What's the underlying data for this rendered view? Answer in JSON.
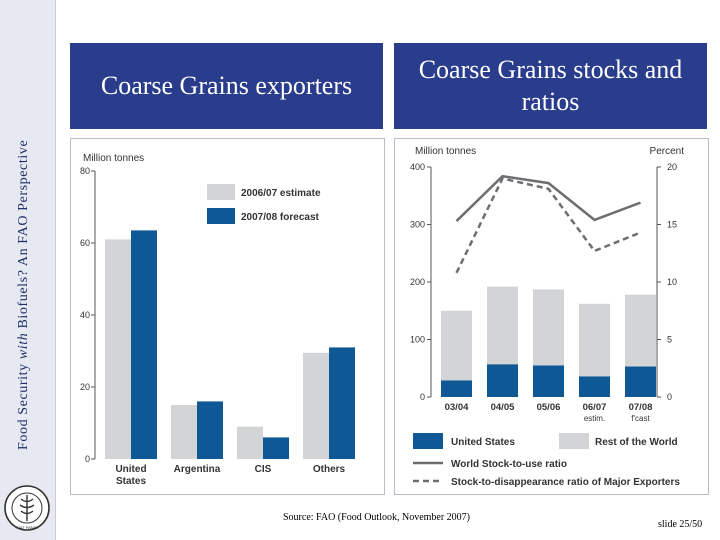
{
  "sidebar": {
    "text_prefix": "Food Security ",
    "text_italic": "with",
    "text_suffix": " Biofuels? An FAO Perspective"
  },
  "logo": {
    "letters": "FIAT PANIS"
  },
  "left_title": "Coarse Grains exporters",
  "right_title": "Coarse Grains stocks and ratios",
  "footer": {
    "source": "Source: FAO (Food Outlook, November 2007)",
    "slide_number": "slide 25/50"
  },
  "colors": {
    "blue": "#0e5896",
    "grey": "#d3d4d6",
    "title_bg": "#2a3c8c",
    "line": "#6d6e71"
  },
  "chart_data": [
    {
      "type": "bar",
      "ylabel": "Million tonnes",
      "ylim": [
        0,
        80
      ],
      "yticks": [
        "0",
        "20",
        "40",
        "60",
        "80"
      ],
      "categories": [
        "United States",
        "Argentina",
        "CIS",
        "Others"
      ],
      "category_lines": [
        [
          "United",
          "States"
        ],
        [
          "Argentina"
        ],
        [
          "CIS"
        ],
        [
          "Others"
        ]
      ],
      "series": [
        {
          "name": "2006/07 estimate",
          "color": "#d3d4d6",
          "values": [
            61,
            15,
            9,
            29.5
          ]
        },
        {
          "name": "2007/08 forecast",
          "color": "#0e5896",
          "values": [
            63.5,
            16,
            6,
            31
          ]
        }
      ],
      "legend_placement": "top-right",
      "grid": false
    },
    {
      "type": "bar",
      "ylabel": "Million tonnes",
      "y2label": "Percent",
      "ylim": [
        0,
        400
      ],
      "y2lim": [
        0,
        20
      ],
      "yticks": [
        "0",
        "100",
        "200",
        "300",
        "400"
      ],
      "y2ticks": [
        "0",
        "5",
        "10",
        "15",
        "20"
      ],
      "categories": [
        "03/04",
        "04/05",
        "05/06",
        "06/07",
        "07/08"
      ],
      "category_sublabels": [
        "",
        "",
        "",
        "estim.",
        "f'cast"
      ],
      "stacked_series": [
        {
          "name": "United States",
          "color": "#0e5896",
          "values": [
            29,
            57,
            55,
            36,
            53
          ]
        },
        {
          "name": "Rest of the World",
          "color": "#d3d4d6",
          "values": [
            121,
            135,
            132,
            126,
            125
          ]
        }
      ],
      "line_series": [
        {
          "name": "World Stock-to-use ratio",
          "axis": "right",
          "style": "solid",
          "values": [
            15.3,
            19.2,
            18.6,
            15.4,
            16.9
          ]
        },
        {
          "name": "Stock-to-disappearance ratio of Major Exporters",
          "axis": "right",
          "style": "dashed",
          "values": [
            10.8,
            19.0,
            18.1,
            12.7,
            14.3
          ]
        }
      ],
      "legend_placement": "bottom",
      "grid": false
    }
  ]
}
